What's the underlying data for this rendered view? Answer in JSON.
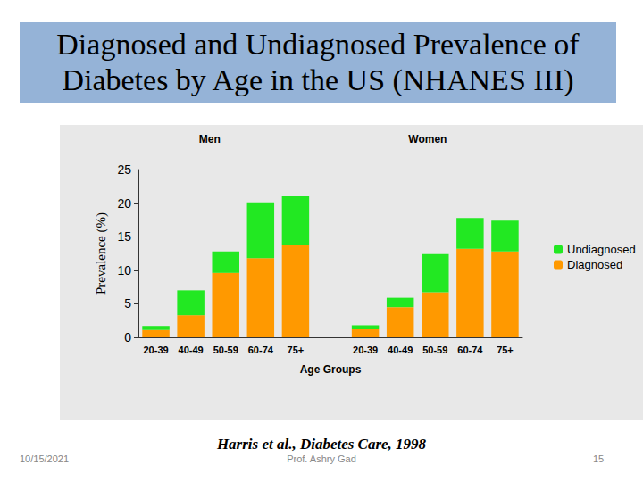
{
  "slide": {
    "title": [
      "Diagnosed and Undiagnosed Prevalence of",
      "Diabetes by Age in the US (NHANES III)"
    ],
    "citation": "Harris et al., Diabetes Care, 1998",
    "author": "Prof. Ashry Gad",
    "date": "10/15/2021",
    "page": "15"
  },
  "chart_data": {
    "type": "bar",
    "stacked": true,
    "annotations": [
      "Men",
      "Women"
    ],
    "x_label": "Age Groups",
    "y_label": "Prevalence (%)",
    "categories": [
      "20-39",
      "40-49",
      "50-59",
      "60-74",
      "75+",
      null,
      "20-39",
      "40-49",
      "50-59",
      "60-74",
      "75+"
    ],
    "series": [
      {
        "name": "Diagnosed",
        "color": "#ff9900",
        "values": [
          1.1,
          3.3,
          9.6,
          11.8,
          13.8,
          null,
          1.2,
          4.5,
          6.7,
          13.2,
          12.8
        ]
      },
      {
        "name": "Undiagnosed",
        "color": "#22e822",
        "values": [
          0.6,
          3.7,
          3.2,
          8.3,
          7.2,
          null,
          0.6,
          1.4,
          5.7,
          4.6,
          4.6
        ]
      }
    ],
    "ylim": [
      0,
      25
    ],
    "yticks": [
      0,
      5,
      10,
      15,
      20,
      25
    ],
    "grid": false,
    "legend": "right"
  }
}
